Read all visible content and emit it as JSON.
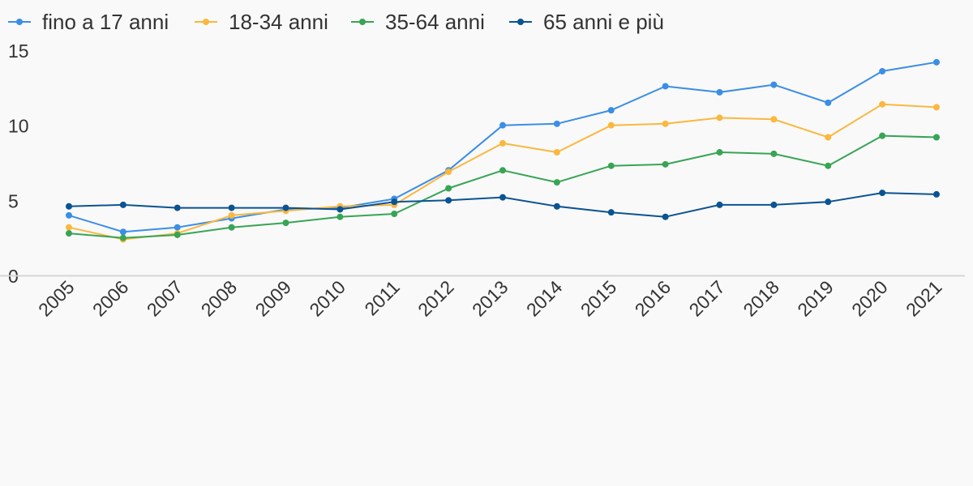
{
  "chart_data": {
    "type": "line",
    "title": "",
    "xlabel": "",
    "ylabel": "",
    "categories": [
      "2005",
      "2006",
      "2007",
      "2008",
      "2009",
      "2010",
      "2011",
      "2012",
      "2013",
      "2014",
      "2015",
      "2016",
      "2017",
      "2018",
      "2019",
      "2020",
      "2021"
    ],
    "ylim": [
      0,
      15
    ],
    "yticks": [
      0,
      5,
      10,
      15
    ],
    "grid": false,
    "legend_position": "top-left",
    "series": [
      {
        "name": "fino a 17 anni",
        "color": "#3a8ee6",
        "values": [
          4.0,
          2.9,
          3.2,
          3.8,
          4.4,
          4.5,
          5.1,
          7.0,
          10.0,
          10.1,
          11.0,
          12.6,
          12.2,
          12.7,
          11.5,
          13.6,
          14.2
        ]
      },
      {
        "name": "18-34 anni",
        "color": "#fbb73e",
        "values": [
          3.2,
          2.4,
          2.8,
          4.0,
          4.3,
          4.6,
          4.7,
          6.9,
          8.8,
          8.2,
          10.0,
          10.1,
          10.5,
          10.4,
          9.2,
          11.4,
          11.2
        ]
      },
      {
        "name": "35-64 anni",
        "color": "#38a455",
        "values": [
          2.8,
          2.5,
          2.7,
          3.2,
          3.5,
          3.9,
          4.1,
          5.8,
          7.0,
          6.2,
          7.3,
          7.4,
          8.2,
          8.1,
          7.3,
          9.3,
          9.2
        ]
      },
      {
        "name": "65 anni e più",
        "color": "#0b5392",
        "values": [
          4.6,
          4.7,
          4.5,
          4.5,
          4.5,
          4.4,
          4.9,
          5.0,
          5.2,
          4.6,
          4.2,
          3.9,
          4.7,
          4.7,
          4.9,
          5.5,
          5.4
        ]
      }
    ]
  }
}
